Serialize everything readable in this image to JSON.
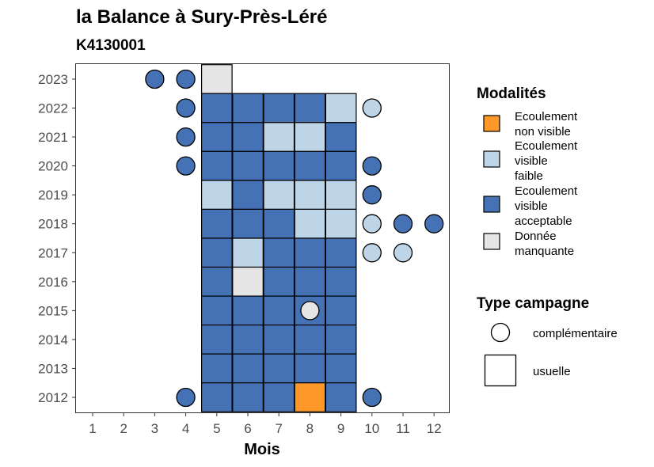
{
  "chart_data": {
    "type": "heatmap",
    "title": "la Balance à Sury-Près-Léré",
    "subtitle": "K4130001",
    "xlabel": "Mois",
    "x_ticks": [
      "1",
      "2",
      "3",
      "4",
      "5",
      "6",
      "7",
      "8",
      "9",
      "10",
      "11",
      "12"
    ],
    "y_ticks": [
      "2012",
      "2013",
      "2014",
      "2015",
      "2016",
      "2017",
      "2018",
      "2019",
      "2020",
      "2021",
      "2022",
      "2023"
    ],
    "legend_modalites": {
      "title": "Modalités",
      "items": [
        {
          "key": "nv",
          "label_lines": [
            "Ecoulement",
            "non visible"
          ],
          "color": "#FE9929"
        },
        {
          "key": "vf",
          "label_lines": [
            "Ecoulement",
            "visible",
            "faible"
          ],
          "color": "#BDD5E6"
        },
        {
          "key": "va",
          "label_lines": [
            "Ecoulement",
            "visible",
            "acceptable"
          ],
          "color": "#4472B4"
        },
        {
          "key": "dm",
          "label_lines": [
            "Donnée",
            "manquante"
          ],
          "color": "#E5E5E5"
        }
      ]
    },
    "legend_type": {
      "title": "Type campagne",
      "items": [
        {
          "key": "comp",
          "label": "complémentaire",
          "shape": "circle"
        },
        {
          "key": "usu",
          "label": "usuelle",
          "shape": "square"
        }
      ]
    },
    "usuelle": [
      {
        "year": 2023,
        "month": 5,
        "mod": "dm"
      },
      {
        "year": 2022,
        "month": 5,
        "mod": "va"
      },
      {
        "year": 2022,
        "month": 6,
        "mod": "va"
      },
      {
        "year": 2022,
        "month": 7,
        "mod": "va"
      },
      {
        "year": 2022,
        "month": 8,
        "mod": "va"
      },
      {
        "year": 2022,
        "month": 9,
        "mod": "vf"
      },
      {
        "year": 2021,
        "month": 5,
        "mod": "va"
      },
      {
        "year": 2021,
        "month": 6,
        "mod": "va"
      },
      {
        "year": 2021,
        "month": 7,
        "mod": "vf"
      },
      {
        "year": 2021,
        "month": 8,
        "mod": "vf"
      },
      {
        "year": 2021,
        "month": 9,
        "mod": "va"
      },
      {
        "year": 2020,
        "month": 5,
        "mod": "va"
      },
      {
        "year": 2020,
        "month": 6,
        "mod": "va"
      },
      {
        "year": 2020,
        "month": 7,
        "mod": "va"
      },
      {
        "year": 2020,
        "month": 8,
        "mod": "va"
      },
      {
        "year": 2020,
        "month": 9,
        "mod": "va"
      },
      {
        "year": 2019,
        "month": 5,
        "mod": "vf"
      },
      {
        "year": 2019,
        "month": 6,
        "mod": "va"
      },
      {
        "year": 2019,
        "month": 7,
        "mod": "vf"
      },
      {
        "year": 2019,
        "month": 8,
        "mod": "vf"
      },
      {
        "year": 2019,
        "month": 9,
        "mod": "vf"
      },
      {
        "year": 2018,
        "month": 5,
        "mod": "va"
      },
      {
        "year": 2018,
        "month": 6,
        "mod": "va"
      },
      {
        "year": 2018,
        "month": 7,
        "mod": "va"
      },
      {
        "year": 2018,
        "month": 8,
        "mod": "vf"
      },
      {
        "year": 2018,
        "month": 9,
        "mod": "vf"
      },
      {
        "year": 2017,
        "month": 5,
        "mod": "va"
      },
      {
        "year": 2017,
        "month": 6,
        "mod": "vf"
      },
      {
        "year": 2017,
        "month": 7,
        "mod": "va"
      },
      {
        "year": 2017,
        "month": 8,
        "mod": "va"
      },
      {
        "year": 2017,
        "month": 9,
        "mod": "va"
      },
      {
        "year": 2016,
        "month": 5,
        "mod": "va"
      },
      {
        "year": 2016,
        "month": 6,
        "mod": "dm"
      },
      {
        "year": 2016,
        "month": 7,
        "mod": "va"
      },
      {
        "year": 2016,
        "month": 8,
        "mod": "va"
      },
      {
        "year": 2016,
        "month": 9,
        "mod": "va"
      },
      {
        "year": 2015,
        "month": 5,
        "mod": "va"
      },
      {
        "year": 2015,
        "month": 6,
        "mod": "va"
      },
      {
        "year": 2015,
        "month": 7,
        "mod": "va"
      },
      {
        "year": 2015,
        "month": 8,
        "mod": "va"
      },
      {
        "year": 2015,
        "month": 9,
        "mod": "va"
      },
      {
        "year": 2014,
        "month": 5,
        "mod": "va"
      },
      {
        "year": 2014,
        "month": 6,
        "mod": "va"
      },
      {
        "year": 2014,
        "month": 7,
        "mod": "va"
      },
      {
        "year": 2014,
        "month": 8,
        "mod": "va"
      },
      {
        "year": 2014,
        "month": 9,
        "mod": "va"
      },
      {
        "year": 2013,
        "month": 5,
        "mod": "va"
      },
      {
        "year": 2013,
        "month": 6,
        "mod": "va"
      },
      {
        "year": 2013,
        "month": 7,
        "mod": "va"
      },
      {
        "year": 2013,
        "month": 8,
        "mod": "va"
      },
      {
        "year": 2013,
        "month": 9,
        "mod": "va"
      },
      {
        "year": 2012,
        "month": 5,
        "mod": "va"
      },
      {
        "year": 2012,
        "month": 6,
        "mod": "va"
      },
      {
        "year": 2012,
        "month": 7,
        "mod": "va"
      },
      {
        "year": 2012,
        "month": 8,
        "mod": "nv"
      },
      {
        "year": 2012,
        "month": 9,
        "mod": "va"
      }
    ],
    "complementaire": [
      {
        "year": 2023,
        "month": 3,
        "mod": "va"
      },
      {
        "year": 2023,
        "month": 4,
        "mod": "va"
      },
      {
        "year": 2022,
        "month": 4,
        "mod": "va"
      },
      {
        "year": 2022,
        "month": 10,
        "mod": "vf"
      },
      {
        "year": 2021,
        "month": 4,
        "mod": "va"
      },
      {
        "year": 2020,
        "month": 4,
        "mod": "va"
      },
      {
        "year": 2020,
        "month": 10,
        "mod": "va"
      },
      {
        "year": 2019,
        "month": 10,
        "mod": "va"
      },
      {
        "year": 2018,
        "month": 10,
        "mod": "vf"
      },
      {
        "year": 2018,
        "month": 11,
        "mod": "va"
      },
      {
        "year": 2018,
        "month": 12,
        "mod": "va"
      },
      {
        "year": 2017,
        "month": 10,
        "mod": "vf"
      },
      {
        "year": 2017,
        "month": 11,
        "mod": "vf"
      },
      {
        "year": 2015,
        "month": 8,
        "mod": "dm"
      },
      {
        "year": 2012,
        "month": 4,
        "mod": "va"
      },
      {
        "year": 2012,
        "month": 10,
        "mod": "va"
      }
    ]
  }
}
